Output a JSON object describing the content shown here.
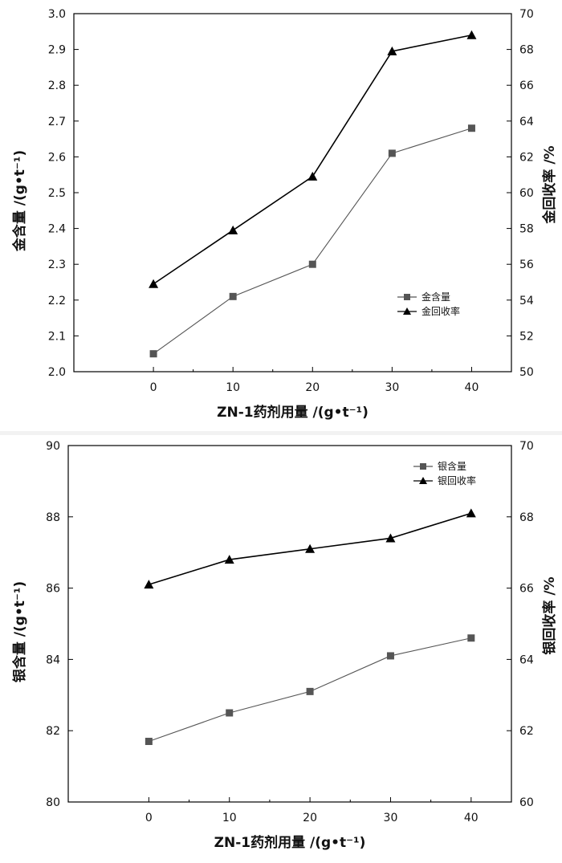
{
  "chart_data": [
    {
      "type": "line",
      "xlabel": "ZN-1药剂用量 /(g•t⁻¹)",
      "ylabel": "金含量 /(g•t⁻¹)",
      "y2label": "金回收率 /%",
      "x": [
        0,
        10,
        20,
        30,
        40
      ],
      "xticks": [
        "0",
        "10",
        "20",
        "30",
        "40"
      ],
      "xlim": [
        -10,
        45
      ],
      "ylim": [
        2.0,
        3.0
      ],
      "yticks": [
        "2.0",
        "2.1",
        "2.2",
        "2.3",
        "2.4",
        "2.5",
        "2.6",
        "2.7",
        "2.8",
        "2.9",
        "3.0"
      ],
      "y2lim": [
        50,
        70
      ],
      "y2ticks": [
        "50",
        "52",
        "54",
        "56",
        "58",
        "60",
        "62",
        "64",
        "66",
        "68",
        "70"
      ],
      "legend_position": "lower-right",
      "grid": false,
      "series": [
        {
          "name": "金含量",
          "axis": "left",
          "marker": "square",
          "color": "#555555",
          "values": [
            2.05,
            2.21,
            2.3,
            2.61,
            2.68
          ]
        },
        {
          "name": "金回收率",
          "axis": "right",
          "marker": "triangle",
          "color": "#000000",
          "values": [
            54.9,
            57.9,
            60.9,
            67.9,
            68.8
          ]
        }
      ]
    },
    {
      "type": "line",
      "xlabel": "ZN-1药剂用量 /(g•t⁻¹)",
      "ylabel": "银含量 /(g•t⁻¹)",
      "y2label": "银回收率 /%",
      "x": [
        0,
        10,
        20,
        30,
        40
      ],
      "xticks": [
        "0",
        "10",
        "20",
        "30",
        "40"
      ],
      "xlim": [
        -10,
        45
      ],
      "ylim": [
        80,
        90
      ],
      "yticks": [
        "80",
        "82",
        "84",
        "86",
        "88",
        "90"
      ],
      "y2lim": [
        60,
        70
      ],
      "y2ticks": [
        "60",
        "62",
        "64",
        "66",
        "68",
        "70"
      ],
      "legend_position": "top-right",
      "grid": false,
      "series": [
        {
          "name": "银含量",
          "axis": "left",
          "marker": "square",
          "color": "#555555",
          "values": [
            81.7,
            82.5,
            83.1,
            84.1,
            84.6
          ]
        },
        {
          "name": "银回收率",
          "axis": "right",
          "marker": "triangle",
          "color": "#000000",
          "values": [
            66.1,
            66.8,
            67.1,
            67.4,
            68.1
          ]
        }
      ]
    }
  ]
}
